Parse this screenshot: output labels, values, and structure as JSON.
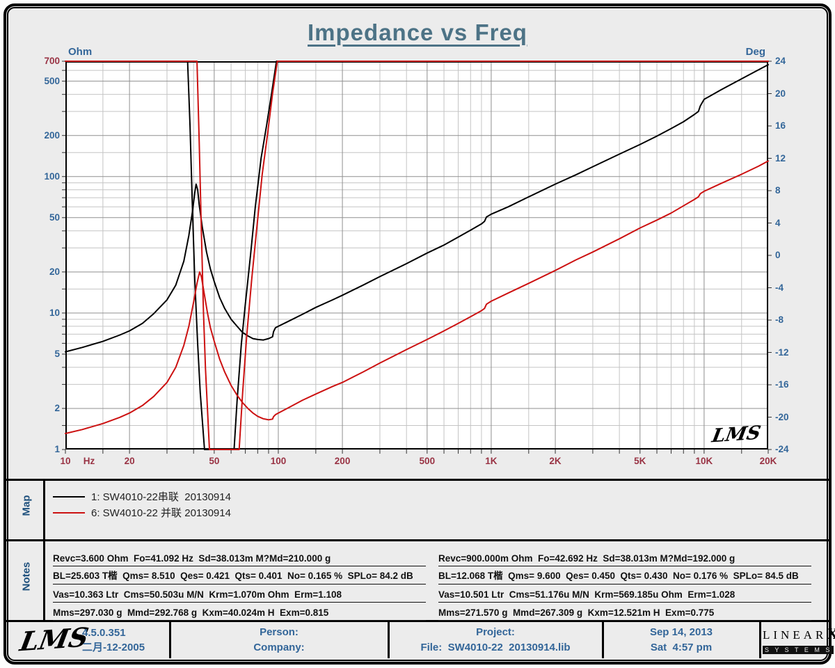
{
  "title": "Impedance vs Freq",
  "watermark": "LMS",
  "colors": {
    "title": "#4d7386",
    "axis_blue": "#336699",
    "axis_maroon": "#993344",
    "curve_black": "#000000",
    "curve_red": "#cc1111",
    "grid_major": "#8f8f8f",
    "grid_minor": "#c4c4c4"
  },
  "chart_data": {
    "type": "line",
    "title": "Impedance vs Freq",
    "grid": true,
    "legend_position": "map-panel-below",
    "x_axis": {
      "unit": "Hz",
      "scale": "log",
      "min": 10,
      "max": 20000,
      "major_ticks": [
        10,
        20,
        50,
        100,
        200,
        500,
        1000,
        2000,
        5000,
        10000,
        20000
      ],
      "tick_labels": [
        "10",
        "20",
        "50",
        "100",
        "200",
        "500",
        "1K",
        "2K",
        "5K",
        "10K",
        "20K"
      ],
      "minor_ticks": [
        15,
        30,
        40,
        60,
        70,
        80,
        90,
        150,
        300,
        400,
        600,
        700,
        800,
        900,
        1500,
        3000,
        4000,
        6000,
        7000,
        8000,
        9000,
        15000
      ]
    },
    "y_left": {
      "label": "Ohm",
      "scale": "log",
      "min": 1,
      "max": 700,
      "ticks": [
        700,
        500,
        200,
        100,
        50,
        20,
        10,
        5,
        2,
        1
      ],
      "maroon_ticks": [
        700
      ],
      "minor_ticks": [
        600,
        400,
        300,
        150,
        90,
        80,
        70,
        60,
        40,
        30,
        15,
        9,
        8,
        7,
        6,
        4,
        3,
        1.5
      ]
    },
    "y_right": {
      "label": "Deg",
      "scale": "linear",
      "min": -24,
      "max": 24,
      "ticks": [
        24,
        20,
        16,
        12,
        8,
        4,
        0,
        -4,
        -8,
        -12,
        -16,
        -20,
        -24
      ],
      "note": "phase curves are clipped to the ±24 degree window"
    },
    "series": [
      {
        "name": "1: SW4010-22串联  20130914",
        "color": "#000000",
        "impedance_ohm": [
          [
            10,
            5.2
          ],
          [
            12,
            5.6
          ],
          [
            15,
            6.2
          ],
          [
            18,
            6.9
          ],
          [
            20,
            7.4
          ],
          [
            23,
            8.4
          ],
          [
            26,
            9.9
          ],
          [
            30,
            12.5
          ],
          [
            33,
            16
          ],
          [
            36,
            24
          ],
          [
            38,
            37
          ],
          [
            39.5,
            55
          ],
          [
            40.5,
            76
          ],
          [
            41.1,
            88
          ],
          [
            41.8,
            80
          ],
          [
            42.5,
            62
          ],
          [
            44,
            42
          ],
          [
            46,
            28
          ],
          [
            48,
            21
          ],
          [
            50,
            17
          ],
          [
            53,
            13
          ],
          [
            56,
            10.8
          ],
          [
            60,
            9.0
          ],
          [
            64,
            8.0
          ],
          [
            68,
            7.2
          ],
          [
            72,
            6.8
          ],
          [
            76,
            6.5
          ],
          [
            80,
            6.4
          ],
          [
            85,
            6.35
          ],
          [
            90,
            6.5
          ],
          [
            94,
            6.7
          ],
          [
            95,
            7.3
          ],
          [
            97,
            7.8
          ],
          [
            100,
            8.0
          ],
          [
            110,
            8.6
          ],
          [
            130,
            9.8
          ],
          [
            150,
            11.0
          ],
          [
            180,
            12.5
          ],
          [
            200,
            13.5
          ],
          [
            250,
            16.0
          ],
          [
            300,
            18.5
          ],
          [
            400,
            23.0
          ],
          [
            500,
            27.5
          ],
          [
            600,
            31.5
          ],
          [
            700,
            36.0
          ],
          [
            800,
            40.5
          ],
          [
            900,
            45.0
          ],
          [
            930,
            47.0
          ],
          [
            950,
            50.5
          ],
          [
            1000,
            53.0
          ],
          [
            1200,
            60.0
          ],
          [
            1500,
            71.0
          ],
          [
            2000,
            88.0
          ],
          [
            2500,
            103
          ],
          [
            3000,
            118
          ],
          [
            4000,
            146
          ],
          [
            5000,
            172
          ],
          [
            6000,
            198
          ],
          [
            7000,
            225
          ],
          [
            8000,
            252
          ],
          [
            9000,
            285
          ],
          [
            9400,
            300
          ],
          [
            9600,
            330
          ],
          [
            10000,
            368
          ],
          [
            12000,
            432
          ],
          [
            15000,
            520
          ],
          [
            18000,
            605
          ],
          [
            20000,
            660
          ]
        ],
        "phase_deg": [
          [
            10,
            40
          ],
          [
            30,
            40
          ],
          [
            36,
            28
          ],
          [
            37.5,
            24
          ],
          [
            38.5,
            16
          ],
          [
            39.5,
            6
          ],
          [
            40.5,
            -3
          ],
          [
            41.8,
            -11
          ],
          [
            43,
            -17
          ],
          [
            45,
            -24
          ],
          [
            47,
            -32
          ],
          [
            55,
            -36
          ],
          [
            60,
            -27
          ],
          [
            62,
            -24
          ],
          [
            64,
            -18
          ],
          [
            67,
            -11
          ],
          [
            70,
            -6
          ],
          [
            74,
            0
          ],
          [
            78,
            6
          ],
          [
            83,
            12
          ],
          [
            88,
            16
          ],
          [
            93,
            20
          ],
          [
            98,
            24
          ],
          [
            110,
            30
          ],
          [
            20000,
            40
          ]
        ]
      },
      {
        "name": "6: SW4010-22 并联 20130914",
        "color": "#cc1111",
        "impedance_ohm": [
          [
            10,
            1.31
          ],
          [
            12,
            1.4
          ],
          [
            15,
            1.55
          ],
          [
            18,
            1.72
          ],
          [
            20,
            1.85
          ],
          [
            23,
            2.1
          ],
          [
            26,
            2.45
          ],
          [
            30,
            3.1
          ],
          [
            33,
            4.0
          ],
          [
            36,
            5.8
          ],
          [
            38,
            8.0
          ],
          [
            40,
            12.0
          ],
          [
            41.5,
            16.5
          ],
          [
            42.7,
            20.0
          ],
          [
            43.5,
            18.5
          ],
          [
            45,
            13.5
          ],
          [
            46.5,
            10.0
          ],
          [
            48,
            7.8
          ],
          [
            50,
            6.2
          ],
          [
            53,
            4.6
          ],
          [
            56,
            3.7
          ],
          [
            60,
            2.95
          ],
          [
            64,
            2.5
          ],
          [
            68,
            2.2
          ],
          [
            72,
            2.0
          ],
          [
            76,
            1.85
          ],
          [
            80,
            1.75
          ],
          [
            85,
            1.68
          ],
          [
            90,
            1.65
          ],
          [
            94,
            1.67
          ],
          [
            95,
            1.74
          ],
          [
            97,
            1.8
          ],
          [
            100,
            1.85
          ],
          [
            110,
            2.0
          ],
          [
            130,
            2.3
          ],
          [
            150,
            2.55
          ],
          [
            180,
            2.9
          ],
          [
            200,
            3.1
          ],
          [
            250,
            3.7
          ],
          [
            300,
            4.3
          ],
          [
            400,
            5.4
          ],
          [
            500,
            6.4
          ],
          [
            600,
            7.4
          ],
          [
            700,
            8.4
          ],
          [
            800,
            9.4
          ],
          [
            900,
            10.4
          ],
          [
            930,
            10.8
          ],
          [
            950,
            11.6
          ],
          [
            1000,
            12.2
          ],
          [
            1200,
            14.0
          ],
          [
            1500,
            16.5
          ],
          [
            2000,
            20.5
          ],
          [
            2500,
            24.5
          ],
          [
            3000,
            28.0
          ],
          [
            4000,
            35.0
          ],
          [
            5000,
            42.0
          ],
          [
            6000,
            48.0
          ],
          [
            7000,
            54.0
          ],
          [
            8000,
            61.0
          ],
          [
            9000,
            68.0
          ],
          [
            9400,
            71.0
          ],
          [
            9600,
            75.0
          ],
          [
            10000,
            78.0
          ],
          [
            12000,
            89.0
          ],
          [
            15000,
            104
          ],
          [
            18000,
            119
          ],
          [
            20000,
            130
          ]
        ],
        "phase_deg": [
          [
            10,
            40
          ],
          [
            35,
            40
          ],
          [
            40,
            30
          ],
          [
            41.5,
            24
          ],
          [
            42.5,
            14
          ],
          [
            43.5,
            3
          ],
          [
            44.5,
            -7
          ],
          [
            45.5,
            -14
          ],
          [
            47.5,
            -24
          ],
          [
            50,
            -32
          ],
          [
            58,
            -36
          ],
          [
            63,
            -28
          ],
          [
            65.5,
            -24
          ],
          [
            68,
            -17
          ],
          [
            71,
            -10
          ],
          [
            75,
            -3
          ],
          [
            79,
            3
          ],
          [
            84,
            10
          ],
          [
            89,
            15
          ],
          [
            94,
            20
          ],
          [
            99,
            24
          ],
          [
            115,
            32
          ],
          [
            20000,
            40
          ]
        ]
      }
    ]
  },
  "map": {
    "label": "Map",
    "items": [
      {
        "name": "1: SW4010-22串联  20130914",
        "color": "#000000"
      },
      {
        "name": "6: SW4010-22 并联 20130914",
        "color": "#cc1111"
      }
    ]
  },
  "notes": {
    "label": "Notes",
    "left": [
      "Revc=3.600 Ohm  Fo=41.092 Hz  Sd=38.013m M?Md=210.000 g",
      "BL=25.603 T楷  Qms= 8.510  Qes= 0.421  Qts= 0.401  No= 0.165 %  SPLo= 84.2 dB",
      "Vas=10.363 Ltr  Cms=50.503u M/N  Krm=1.070m Ohm  Erm=1.108",
      "Mms=297.030 g  Mmd=292.768 g  Kxm=40.024m H  Exm=0.815"
    ],
    "right": [
      "Revc=900.000m Ohm  Fo=42.692 Hz  Sd=38.013m M?Md=192.000 g",
      "BL=12.068 T楷  Qms= 9.600  Qes= 0.450  Qts= 0.430  No= 0.176 %  SPLo= 84.5 dB",
      "Vas=10.501 Ltr  Cms=51.176u M/N  Krm=569.185u Ohm  Erm=1.028",
      "Mms=271.570 g  Mmd=267.309 g  Kxm=12.521m H  Exm=0.775"
    ]
  },
  "footer": {
    "lms_logo": "LMS",
    "version": "4.5.0.351",
    "version_date": "二月-12-2005",
    "person_label": "Person:",
    "company_label": "Company:",
    "project_label": "Project:",
    "file_label": "File:  SW4010-22  20130914.lib",
    "date": "Sep 14, 2013",
    "time": "Sat  4:57 pm",
    "linearx_line1": "LINEAR",
    "linearx_x": "X",
    "linearx_line2": "S Y S T E M S"
  }
}
